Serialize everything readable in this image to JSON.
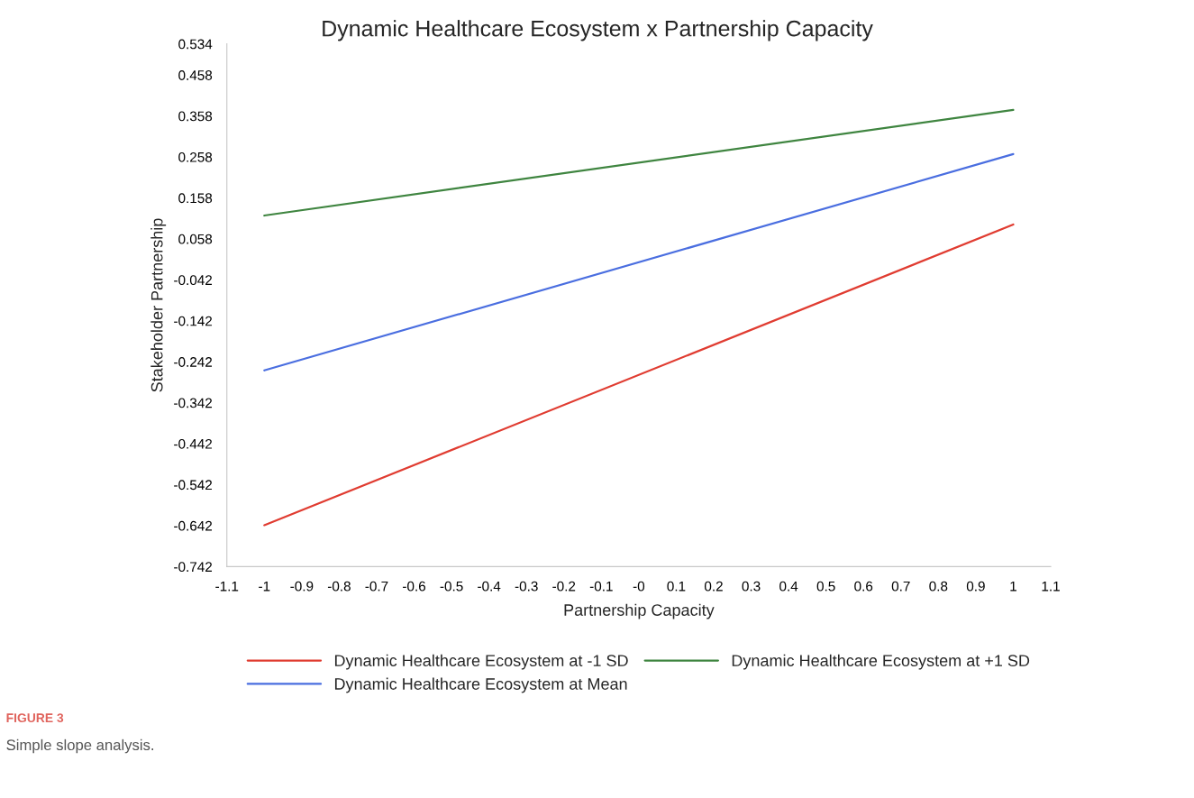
{
  "chart_data": {
    "type": "line",
    "title": "Dynamic Healthcare Ecosystem x Partnership Capacity",
    "xlabel": "Partnership Capacity",
    "ylabel": "Stakeholder Partnership",
    "x": [
      -1,
      1
    ],
    "series": [
      {
        "name": "Dynamic Healthcare Ecosystem at -1 SD",
        "color": "#e03c31",
        "values": [
          -0.641,
          0.093
        ]
      },
      {
        "name": "Dynamic Healthcare Ecosystem at Mean",
        "color": "#4a6ee0",
        "values": [
          -0.263,
          0.265
        ]
      },
      {
        "name": "Dynamic Healthcare Ecosystem at +1 SD",
        "color": "#3f8540",
        "values": [
          0.115,
          0.373
        ]
      }
    ],
    "xlim": [
      -1.1,
      1.1
    ],
    "xticks": [
      -1.1,
      -1,
      -0.9,
      -0.8,
      -0.7,
      -0.6,
      -0.5,
      -0.4,
      -0.3,
      -0.2,
      -0.1,
      {
        "value": 0,
        "label": "-0"
      },
      0.1,
      0.2,
      0.3,
      0.4,
      0.5,
      0.6,
      0.7,
      0.8,
      0.9,
      1,
      1.1
    ],
    "ylim": [
      -0.742,
      0.534
    ],
    "yticks": [
      -0.742,
      -0.642,
      -0.542,
      -0.442,
      -0.342,
      -0.242,
      -0.142,
      -0.042,
      0.058,
      0.158,
      0.258,
      0.358,
      0.458,
      0.534
    ],
    "grid": false,
    "legend": "bottom",
    "marker": "none",
    "line_style": "solid",
    "annotations": [
      "FIGURE 3",
      "Simple slope analysis."
    ]
  }
}
